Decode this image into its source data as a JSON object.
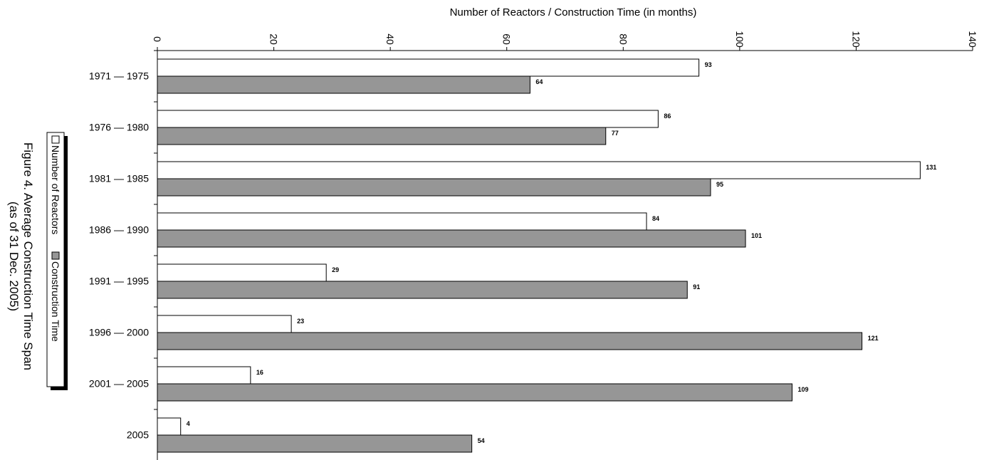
{
  "chart_data": {
    "type": "bar",
    "orientation": "horizontal",
    "title": "Figure 4.  Average Construction Time Span",
    "subtitle": "(as of 31 Dec. 2005)",
    "xlabel": "Number of Reactors / Construction Time (in months)",
    "ylabel": "",
    "xlim": [
      0,
      140
    ],
    "x_ticks": [
      0,
      20,
      40,
      60,
      80,
      100,
      120,
      140
    ],
    "grid": false,
    "legend_position": "left",
    "categories": [
      "1971 — 1975",
      "1976 — 1980",
      "1981 — 1985",
      "1986 — 1990",
      "1991 — 1995",
      "1996 — 2000",
      "2001 — 2005",
      "2005"
    ],
    "series": [
      {
        "name": "Number of Reactors",
        "color": "#ffffff",
        "values": [
          93,
          86,
          131,
          84,
          29,
          23,
          16,
          4
        ]
      },
      {
        "name": "Construction Time",
        "color": "#969696",
        "values": [
          64,
          77,
          95,
          101,
          91,
          121,
          109,
          54
        ]
      }
    ]
  }
}
